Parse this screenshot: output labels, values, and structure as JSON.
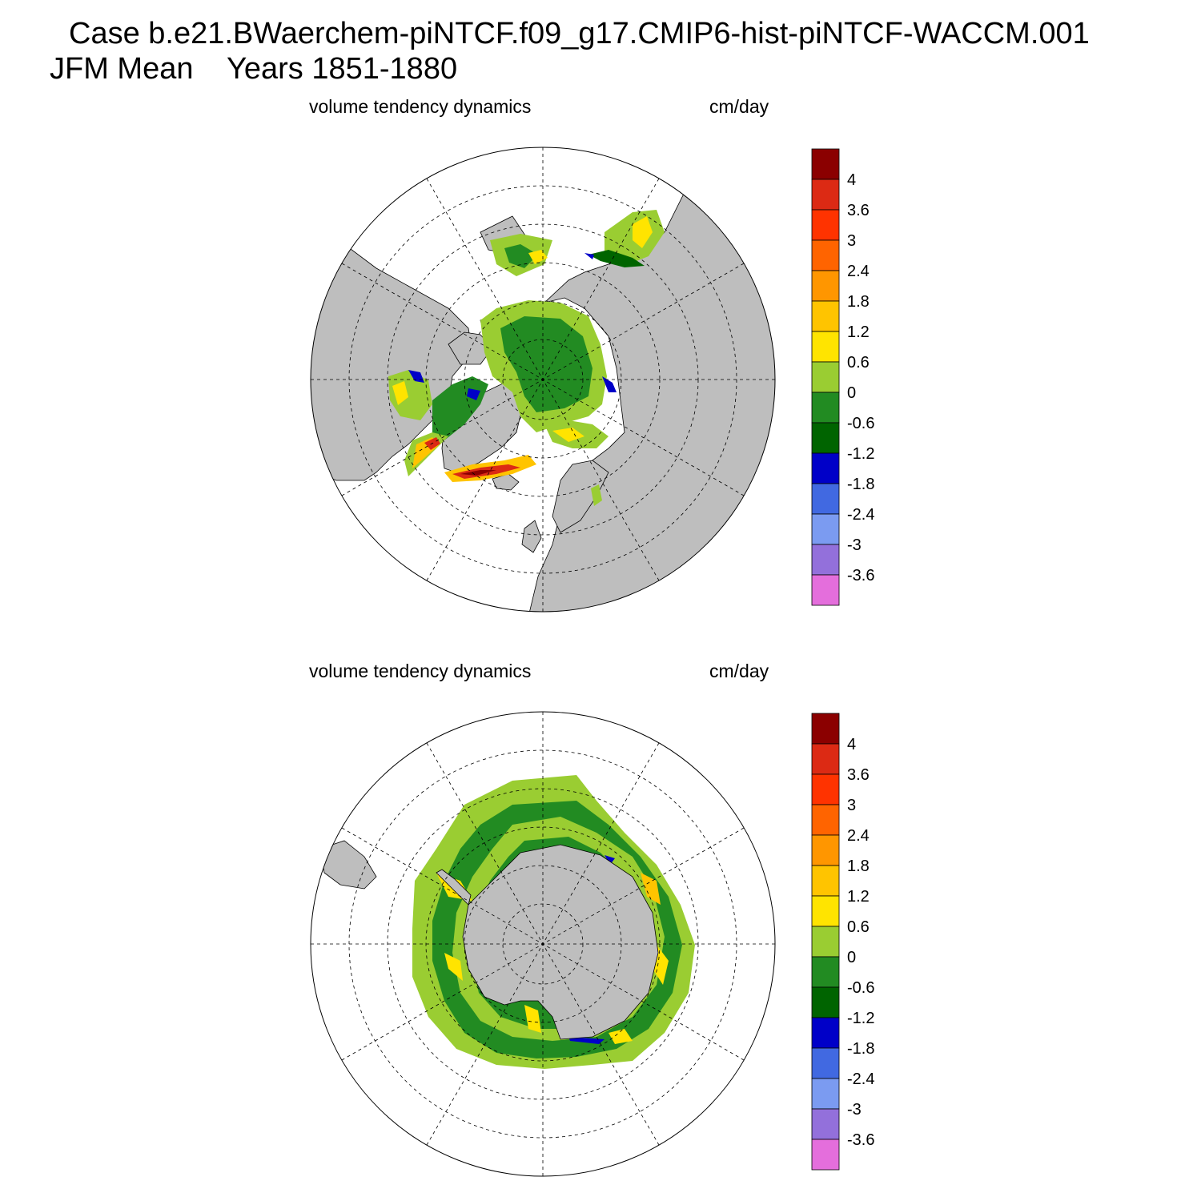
{
  "title": {
    "line1": "Case b.e21.BWaerchem-piNTCF.f09_g17.CMIP6-hist-piNTCF-WACCM.001",
    "line2": "JFM Mean    Years 1851-1880"
  },
  "panels": [
    {
      "left_label": "volume tendency dynamics",
      "right_label": "cm/day",
      "region": "north-polar-stereographic"
    },
    {
      "left_label": "volume tendency dynamics",
      "right_label": "cm/day",
      "region": "south-polar-stereographic"
    }
  ],
  "colorbar": {
    "colors": [
      "#e46edc",
      "#9370db",
      "#7b9bf1",
      "#4169e1",
      "#0000c8",
      "#006400",
      "#228b22",
      "#9acd32",
      "#ffe400",
      "#ffc400",
      "#ff9600",
      "#ff6400",
      "#ff3300",
      "#dc2a14",
      "#8b0000"
    ],
    "tick_labels": [
      "-3.6",
      "-3",
      "-2.4",
      "-1.8",
      "-1.2",
      "-0.6",
      "0",
      "0.6",
      "1.2",
      "1.8",
      "2.4",
      "3",
      "3.6",
      "4"
    ]
  },
  "map_colors": {
    "land": "#bebebe",
    "ocean": "#ffffff",
    "grid": "#000000"
  }
}
